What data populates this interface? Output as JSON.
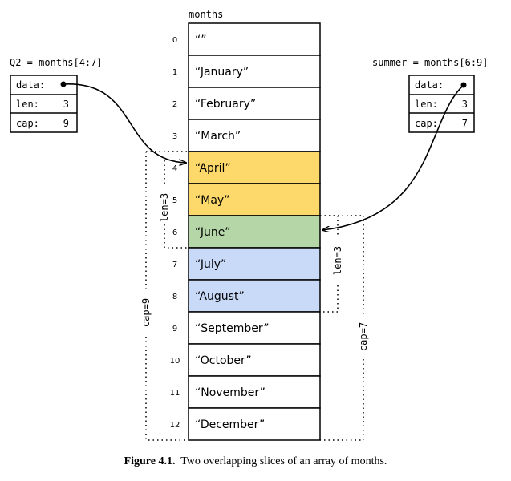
{
  "array": {
    "name": "months",
    "indices": [
      "0",
      "1",
      "2",
      "3",
      "4",
      "5",
      "6",
      "7",
      "8",
      "9",
      "10",
      "11",
      "12"
    ],
    "values": [
      "“”",
      "“January”",
      "“February”",
      "“March”",
      "“April”",
      "“May”",
      "“June”",
      "“July”",
      "“August”",
      "“September”",
      "“October”",
      "“November”",
      "“December”"
    ]
  },
  "colors": {
    "q2_only": "#fcd96a",
    "overlap": "#b5d6a7",
    "summer_only": "#c9daf8",
    "default": "#ffffff"
  },
  "q2": {
    "label": "Q2 = months[4:7]",
    "fields": [
      {
        "name": "data:",
        "value": ""
      },
      {
        "name": "len:",
        "value": "3"
      },
      {
        "name": "cap:",
        "value": "9"
      }
    ],
    "len_label": "len=3",
    "cap_label": "cap=9"
  },
  "summer": {
    "label": "summer = months[6:9]",
    "fields": [
      {
        "name": "data:",
        "value": ""
      },
      {
        "name": "len:",
        "value": "3"
      },
      {
        "name": "cap:",
        "value": "7"
      }
    ],
    "len_label": "len=3",
    "cap_label": "cap=7"
  },
  "caption": {
    "number": "Figure 4.1.",
    "text": "Two overlapping slices of an array of months."
  }
}
